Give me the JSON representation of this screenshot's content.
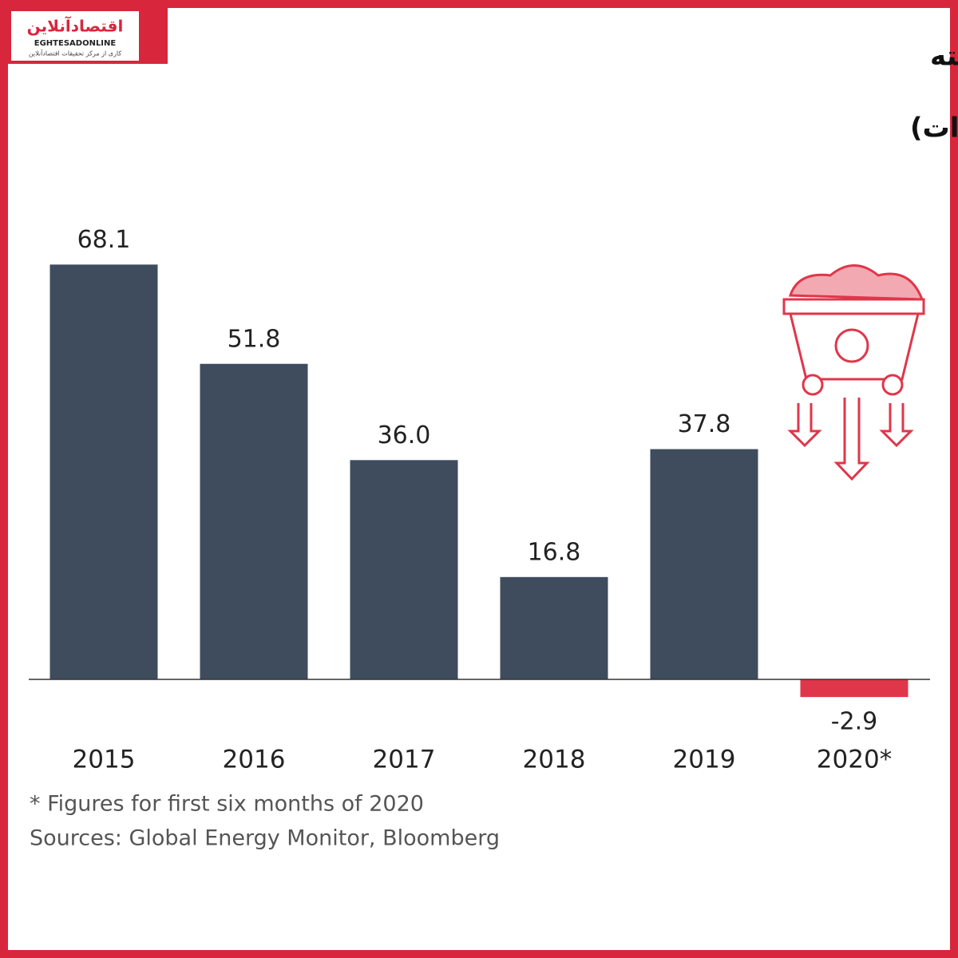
{
  "logo": {
    "name": "اقتصادآنلاین",
    "latin": "EGHTESADONLINE",
    "tagline": "کاری از مرکز تحقیقات اقتصادآنلاین"
  },
  "chart_data": {
    "type": "bar",
    "title": "میزان رشد تولید زغال‌سنگ در پنج سال گذشته",
    "subtitle": "(گیگاوات)",
    "categories": [
      "2015",
      "2016",
      "2017",
      "2018",
      "2019",
      "2020*"
    ],
    "values": [
      68.1,
      51.8,
      36.0,
      16.8,
      37.8,
      -2.9
    ],
    "value_labels": [
      "68.1",
      "51.8",
      "36.0",
      "16.8",
      "37.8",
      "-2.9"
    ],
    "colors": [
      "#3f4c5e",
      "#3f4c5e",
      "#3f4c5e",
      "#3f4c5e",
      "#3f4c5e",
      "#e0364a"
    ],
    "footnote": "* Figures for first six months of 2020",
    "source": "Sources: Global Energy Monitor, Bloomberg"
  }
}
